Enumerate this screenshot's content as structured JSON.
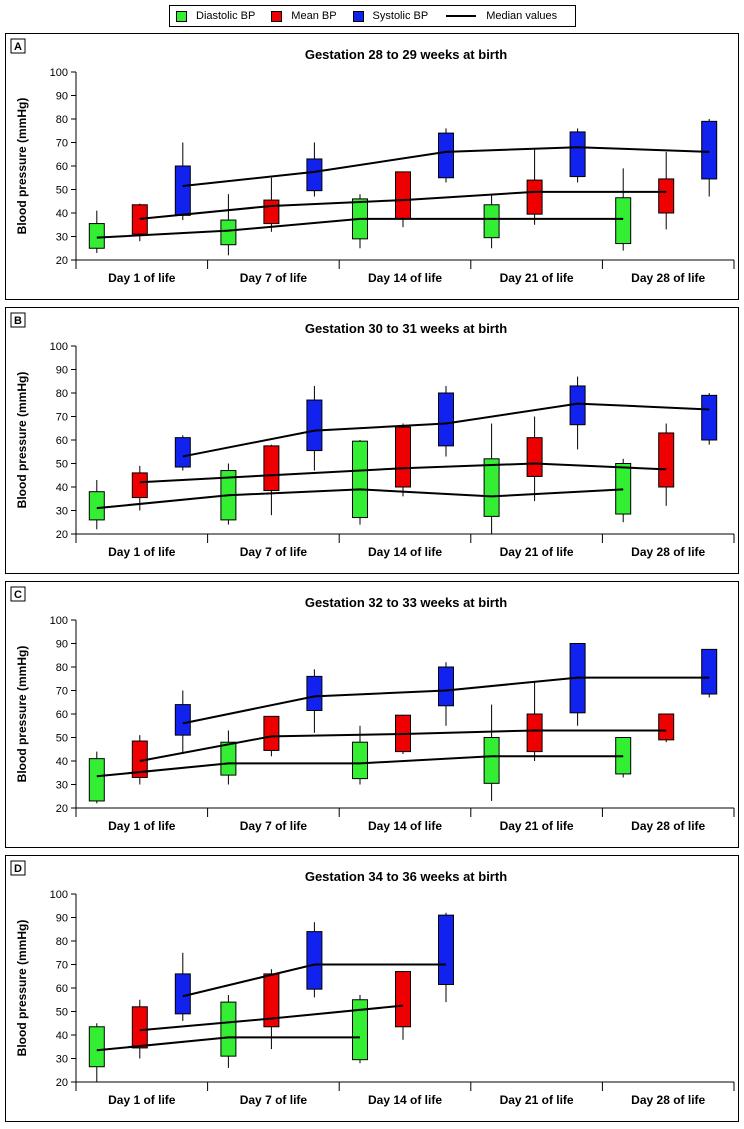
{
  "legend": {
    "diastolic": "Diastolic BP",
    "mean": "Mean BP",
    "systolic": "Systolic BP",
    "median": "Median values"
  },
  "colors": {
    "diastolic": "#33ee33",
    "mean": "#ee0000",
    "systolic": "#1122ee",
    "median": "#000000"
  },
  "chart_data": [
    {
      "type": "box",
      "letter": "A",
      "title": "Gestation 28 to 29 weeks at birth",
      "ylabel": "Blood pressure (mmHg)",
      "ylim": [
        20,
        100
      ],
      "yticks": [
        20,
        30,
        40,
        50,
        60,
        70,
        80,
        90,
        100
      ],
      "categories": [
        "Day 1 of life",
        "Day 7 of life",
        "Day 14 of life",
        "Day 21 of life",
        "Day 28 of life"
      ],
      "series": [
        {
          "name": "Diastolic BP",
          "boxes": [
            {
              "low": 23,
              "q1": 25,
              "median": 29.5,
              "q3": 35.5,
              "high": 41
            },
            {
              "low": 22,
              "q1": 26.5,
              "median": 32.5,
              "q3": 37,
              "high": 48
            },
            {
              "low": 25,
              "q1": 29,
              "median": 37.5,
              "q3": 46,
              "high": 48
            },
            {
              "low": 25,
              "q1": 29.5,
              "median": 37.5,
              "q3": 43.5,
              "high": 48
            },
            {
              "low": 24,
              "q1": 27,
              "median": 37.5,
              "q3": 46.5,
              "high": 59
            }
          ]
        },
        {
          "name": "Mean BP",
          "boxes": [
            {
              "low": 28,
              "q1": 31,
              "median": 37.5,
              "q3": 43.5,
              "high": 44
            },
            {
              "low": 32,
              "q1": 35.5,
              "median": 43,
              "q3": 45.5,
              "high": 55
            },
            {
              "low": 34,
              "q1": 37.5,
              "median": 45.5,
              "q3": 57.5,
              "high": 57.5
            },
            {
              "low": 35,
              "q1": 39.5,
              "median": 49,
              "q3": 54,
              "high": 67
            },
            {
              "low": 33,
              "q1": 40,
              "median": 49,
              "q3": 54.5,
              "high": 66
            }
          ]
        },
        {
          "name": "Systolic BP",
          "boxes": [
            {
              "low": 37,
              "q1": 39,
              "median": 51.5,
              "q3": 60,
              "high": 70
            },
            {
              "low": 47,
              "q1": 49.5,
              "median": 57.5,
              "q3": 63,
              "high": 70
            },
            {
              "low": 53,
              "q1": 55,
              "median": 66,
              "q3": 74,
              "high": 76
            },
            {
              "low": 53,
              "q1": 55.5,
              "median": 68,
              "q3": 74.5,
              "high": 76
            },
            {
              "low": 47,
              "q1": 54.5,
              "median": 66,
              "q3": 79,
              "high": 80
            }
          ]
        }
      ]
    },
    {
      "type": "box",
      "letter": "B",
      "title": "Gestation 30 to 31 weeks at birth",
      "ylabel": "Blood pressure (mmHg)",
      "ylim": [
        20,
        100
      ],
      "yticks": [
        20,
        30,
        40,
        50,
        60,
        70,
        80,
        90,
        100
      ],
      "categories": [
        "Day 1 of life",
        "Day 7 of life",
        "Day 14 of life",
        "Day 21 of life",
        "Day 28 of life"
      ],
      "series": [
        {
          "name": "Diastolic BP",
          "boxes": [
            {
              "low": 22,
              "q1": 26,
              "median": 31,
              "q3": 38,
              "high": 43
            },
            {
              "low": 24,
              "q1": 26,
              "median": 36.5,
              "q3": 47,
              "high": 50
            },
            {
              "low": 24,
              "q1": 27,
              "median": 39,
              "q3": 59.5,
              "high": 60
            },
            {
              "low": 20,
              "q1": 27.5,
              "median": 36,
              "q3": 52,
              "high": 67
            },
            {
              "low": 25,
              "q1": 28.5,
              "median": 39,
              "q3": 50,
              "high": 52
            }
          ]
        },
        {
          "name": "Mean BP",
          "boxes": [
            {
              "low": 30,
              "q1": 35.5,
              "median": 42,
              "q3": 46,
              "high": 49
            },
            {
              "low": 28,
              "q1": 38.5,
              "median": 45,
              "q3": 57.5,
              "high": 58
            },
            {
              "low": 36,
              "q1": 40,
              "median": 48,
              "q3": 65.5,
              "high": 67
            },
            {
              "low": 34,
              "q1": 44.5,
              "median": 50,
              "q3": 61,
              "high": 70
            },
            {
              "low": 32,
              "q1": 40,
              "median": 47.5,
              "q3": 63,
              "high": 67
            }
          ]
        },
        {
          "name": "Systolic BP",
          "boxes": [
            {
              "low": 47,
              "q1": 48.5,
              "median": 53,
              "q3": 61,
              "high": 62
            },
            {
              "low": 47,
              "q1": 55.5,
              "median": 64,
              "q3": 77,
              "high": 83
            },
            {
              "low": 53,
              "q1": 57.5,
              "median": 67,
              "q3": 80,
              "high": 83
            },
            {
              "low": 56,
              "q1": 66.5,
              "median": 75.5,
              "q3": 83,
              "high": 87
            },
            {
              "low": 58,
              "q1": 60,
              "median": 73,
              "q3": 79,
              "high": 80
            }
          ]
        }
      ]
    },
    {
      "type": "box",
      "letter": "C",
      "title": "Gestation 32 to 33 weeks at birth",
      "ylabel": "Blood pressure (mmHg)",
      "ylim": [
        20,
        100
      ],
      "yticks": [
        20,
        30,
        40,
        50,
        60,
        70,
        80,
        90,
        100
      ],
      "categories": [
        "Day 1 of life",
        "Day 7 of life",
        "Day 14 of life",
        "Day 21 of life",
        "Day 28 of life"
      ],
      "series": [
        {
          "name": "Diastolic BP",
          "boxes": [
            {
              "low": 22,
              "q1": 23,
              "median": 33.5,
              "q3": 41,
              "high": 44
            },
            {
              "low": 30,
              "q1": 34,
              "median": 39,
              "q3": 48,
              "high": 53
            },
            {
              "low": 30,
              "q1": 32.5,
              "median": 39,
              "q3": 48,
              "high": 55
            },
            {
              "low": 23,
              "q1": 30.5,
              "median": 42,
              "q3": 50,
              "high": 64
            },
            {
              "low": 33,
              "q1": 34.5,
              "median": 42,
              "q3": 50,
              "high": 50
            }
          ]
        },
        {
          "name": "Mean BP",
          "boxes": [
            {
              "low": 30,
              "q1": 33,
              "median": 40,
              "q3": 48.5,
              "high": 51
            },
            {
              "low": 42,
              "q1": 44.5,
              "median": 50.5,
              "q3": 59,
              "high": 59
            },
            {
              "low": 43,
              "q1": 44,
              "median": 51.5,
              "q3": 59.5,
              "high": 59.5
            },
            {
              "low": 40,
              "q1": 44,
              "median": 53,
              "q3": 60,
              "high": 74
            },
            {
              "low": 48,
              "q1": 49,
              "median": 53,
              "q3": 60,
              "high": 60
            }
          ]
        },
        {
          "name": "Systolic BP",
          "boxes": [
            {
              "low": 43,
              "q1": 51,
              "median": 56,
              "q3": 64,
              "high": 70
            },
            {
              "low": 52,
              "q1": 61.5,
              "median": 67.5,
              "q3": 76,
              "high": 79
            },
            {
              "low": 55,
              "q1": 63.5,
              "median": 70,
              "q3": 80,
              "high": 82
            },
            {
              "low": 55,
              "q1": 60.5,
              "median": 75.5,
              "q3": 90,
              "high": 90
            },
            {
              "low": 67,
              "q1": 68.5,
              "median": 75.5,
              "q3": 87.5,
              "high": 87.5
            }
          ]
        }
      ]
    },
    {
      "type": "box",
      "letter": "D",
      "title": "Gestation 34 to 36 weeks at birth",
      "ylabel": "Blood pressure (mmHg)",
      "ylim": [
        20,
        100
      ],
      "yticks": [
        20,
        30,
        40,
        50,
        60,
        70,
        80,
        90,
        100
      ],
      "categories": [
        "Day 1 of life",
        "Day 7 of life",
        "Day 14 of life",
        "Day 21 of life",
        "Day 28 of life"
      ],
      "series": [
        {
          "name": "Diastolic BP",
          "boxes": [
            {
              "low": 20,
              "q1": 26.5,
              "median": 33.5,
              "q3": 43.5,
              "high": 45
            },
            {
              "low": 26,
              "q1": 31,
              "median": 39,
              "q3": 54,
              "high": 57
            },
            {
              "low": 28,
              "q1": 29.5,
              "median": 39,
              "q3": 55,
              "high": 57
            }
          ]
        },
        {
          "name": "Mean BP",
          "boxes": [
            {
              "low": 30,
              "q1": 34.5,
              "median": 42,
              "q3": 52,
              "high": 55
            },
            {
              "low": 34,
              "q1": 43.5,
              "median": 47,
              "q3": 66,
              "high": 68
            },
            {
              "low": 38,
              "q1": 43.5,
              "median": 52.5,
              "q3": 67,
              "high": 67
            }
          ]
        },
        {
          "name": "Systolic BP",
          "boxes": [
            {
              "low": 46,
              "q1": 49,
              "median": 56.5,
              "q3": 66,
              "high": 75
            },
            {
              "low": 56,
              "q1": 59.5,
              "median": 70,
              "q3": 84,
              "high": 88
            },
            {
              "low": 54,
              "q1": 61.5,
              "median": 70,
              "q3": 91,
              "high": 92
            }
          ]
        }
      ]
    }
  ]
}
